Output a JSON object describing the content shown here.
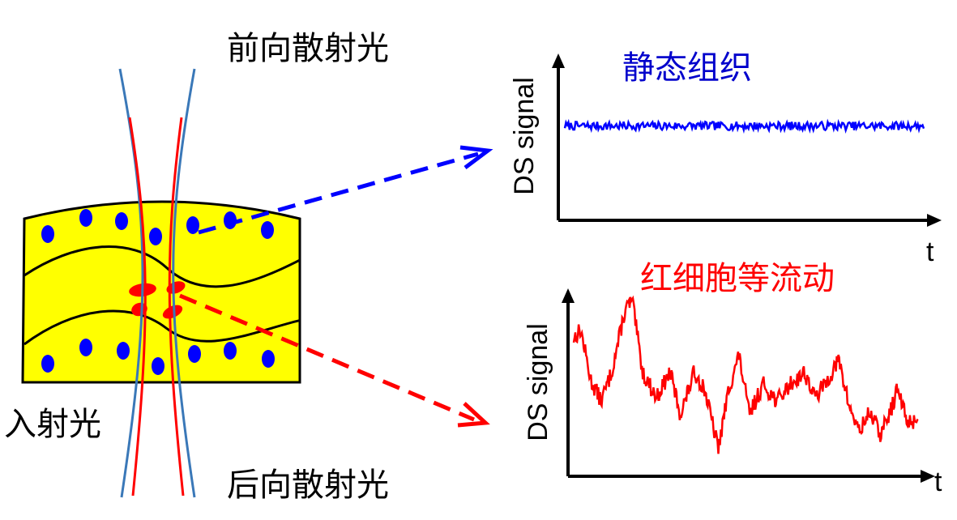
{
  "labels": {
    "forward_scatter": "前向散射光",
    "back_scatter": "后向散射光",
    "incident_light": "入射光",
    "static_tissue": "静态组织",
    "rbc_flow": "红细胞等流动"
  },
  "axes": {
    "ylabel": "DS signal",
    "xlabel": "t"
  },
  "colors": {
    "tissue_fill": "#ffff00",
    "particle": "#0000ff",
    "rbc": "#ff0000",
    "beam_outer": "#3a78b8",
    "beam_inner": "#ff0000",
    "static_text": "#0000cc",
    "flow_text": "#ff0000",
    "axis": "#000000"
  },
  "chart_data": [
    {
      "type": "line",
      "title": "静态组织",
      "ylabel": "DS signal",
      "xlabel": "t",
      "behavior": "flat noisy signal near constant level",
      "level": 0.65,
      "noise": 0.04,
      "samples": 300,
      "color": "#0000ff"
    },
    {
      "type": "line",
      "title": "红细胞等流动",
      "ylabel": "DS signal",
      "xlabel": "t",
      "behavior": "strongly fluctuating signal",
      "keypoints": [
        [
          0.0,
          0.75
        ],
        [
          0.02,
          0.8
        ],
        [
          0.05,
          0.5
        ],
        [
          0.08,
          0.38
        ],
        [
          0.11,
          0.55
        ],
        [
          0.15,
          0.92
        ],
        [
          0.17,
          0.97
        ],
        [
          0.2,
          0.55
        ],
        [
          0.24,
          0.4
        ],
        [
          0.28,
          0.55
        ],
        [
          0.31,
          0.3
        ],
        [
          0.35,
          0.55
        ],
        [
          0.38,
          0.45
        ],
        [
          0.42,
          0.1
        ],
        [
          0.45,
          0.45
        ],
        [
          0.48,
          0.65
        ],
        [
          0.51,
          0.3
        ],
        [
          0.55,
          0.48
        ],
        [
          0.59,
          0.38
        ],
        [
          0.63,
          0.48
        ],
        [
          0.67,
          0.55
        ],
        [
          0.7,
          0.4
        ],
        [
          0.73,
          0.48
        ],
        [
          0.77,
          0.62
        ],
        [
          0.8,
          0.35
        ],
        [
          0.83,
          0.2
        ],
        [
          0.86,
          0.32
        ],
        [
          0.89,
          0.18
        ],
        [
          0.92,
          0.32
        ],
        [
          0.94,
          0.45
        ],
        [
          0.97,
          0.25
        ],
        [
          1.0,
          0.28
        ]
      ],
      "noise": 0.05,
      "samples": 420,
      "color": "#ff0000"
    }
  ]
}
